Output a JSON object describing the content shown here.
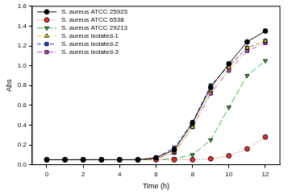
{
  "chart_data": {
    "type": "line",
    "x_label": "Time (h)",
    "y_label": "Abs",
    "x": [
      0,
      1,
      2,
      3,
      4,
      5,
      6,
      7,
      8,
      9,
      10,
      11,
      12
    ],
    "series": [
      {
        "name": "S. aureus ATCC 25923",
        "color": "#000000",
        "marker": "circle",
        "line_style": "solid",
        "values": [
          0.05,
          0.05,
          0.05,
          0.05,
          0.05,
          0.05,
          0.07,
          0.15,
          0.42,
          0.78,
          1.02,
          1.24,
          1.35
        ]
      },
      {
        "name": "S. aureus ATCC 6538",
        "color": "#e0302a",
        "marker": "circle",
        "line_style": "dotted",
        "values": [
          0.05,
          0.05,
          0.05,
          0.05,
          0.05,
          0.05,
          0.05,
          0.05,
          0.05,
          0.06,
          0.09,
          0.16,
          0.28
        ]
      },
      {
        "name": "S. aureus ATCC 29213",
        "color": "#3cb043",
        "marker": "triangle-down",
        "line_style": "longdash",
        "values": [
          0.05,
          0.05,
          0.05,
          0.05,
          0.05,
          0.05,
          0.05,
          0.06,
          0.1,
          0.25,
          0.58,
          0.9,
          1.05
        ]
      },
      {
        "name": "S. aureus isolated-1",
        "color": "#e8d830",
        "marker": "triangle",
        "line_style": "dashdot",
        "values": [
          0.05,
          0.05,
          0.05,
          0.05,
          0.05,
          0.05,
          0.06,
          0.13,
          0.38,
          0.75,
          0.98,
          1.18,
          1.25
        ]
      },
      {
        "name": "S. aureus isolated-2",
        "color": "#2040c8",
        "marker": "square",
        "line_style": "dashed",
        "values": [
          0.05,
          0.05,
          0.05,
          0.05,
          0.05,
          0.05,
          0.07,
          0.17,
          0.43,
          0.8,
          1.0,
          1.18,
          1.25
        ]
      },
      {
        "name": "S. aureus isolated-3",
        "color": "#c040c0",
        "marker": "square",
        "line_style": "dashdotdot",
        "values": [
          0.05,
          0.05,
          0.05,
          0.05,
          0.05,
          0.05,
          0.06,
          0.12,
          0.38,
          0.72,
          0.95,
          1.15,
          1.23
        ]
      }
    ],
    "xlim": [
      -0.8,
      12.8
    ],
    "xticks": [
      0,
      2,
      4,
      6,
      8,
      10,
      12
    ],
    "ylim": [
      0,
      1.6
    ],
    "yticks": [
      {
        "value": 0,
        "label": "0.0"
      },
      0.2,
      0.4,
      0.6,
      0.8,
      {
        "value": 1,
        "label": "1.0"
      },
      1.2,
      1.4,
      1.6
    ],
    "grid": false,
    "legend": "top-left"
  }
}
